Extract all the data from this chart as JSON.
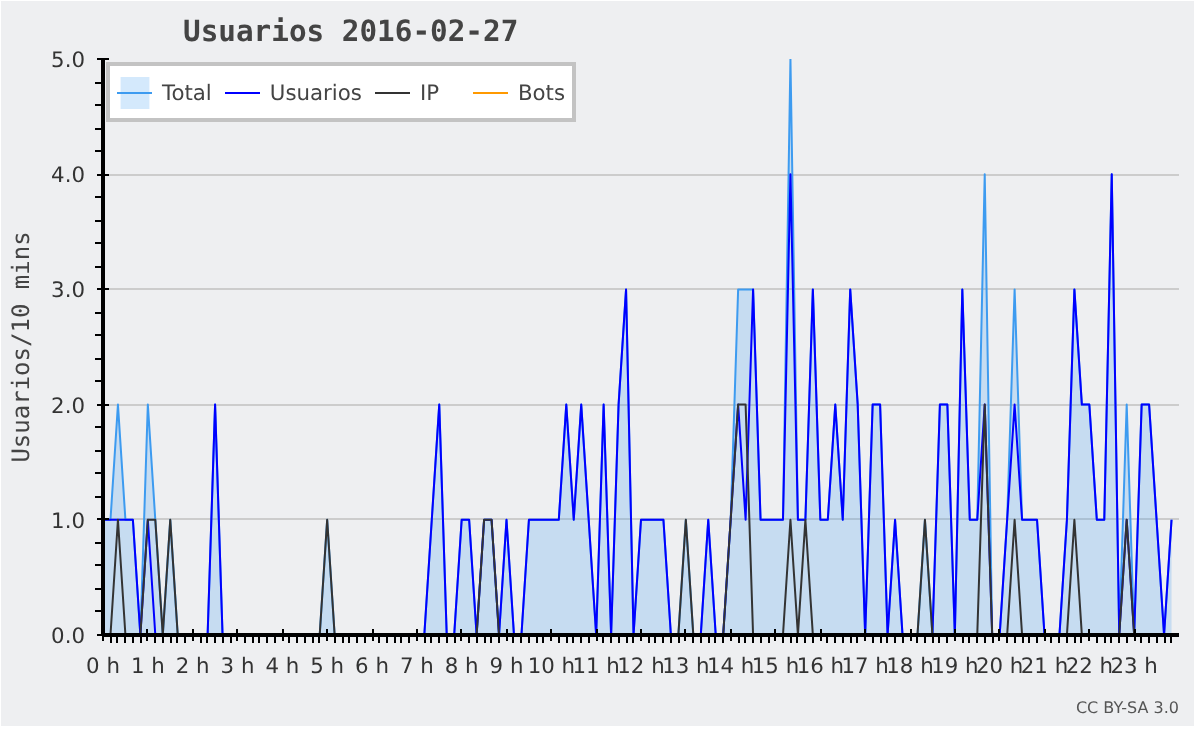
{
  "chart_data": {
    "type": "line",
    "title": "Usuarios  2016-02-27",
    "ylabel": "Usuarios/10 mins",
    "x": [
      0,
      0.1667,
      0.3333,
      0.5,
      0.6667,
      0.8333,
      1,
      1.1667,
      1.3333,
      1.5,
      1.6667,
      1.8333,
      2,
      2.1667,
      2.3333,
      2.5,
      2.6667,
      2.8333,
      3,
      3.1667,
      3.3333,
      3.5,
      3.6667,
      3.8333,
      4,
      4.1667,
      4.3333,
      4.5,
      4.6667,
      4.8333,
      5,
      5.1667,
      5.3333,
      5.5,
      5.6667,
      5.8333,
      6,
      6.1667,
      6.3333,
      6.5,
      6.6667,
      6.8333,
      7,
      7.1667,
      7.3333,
      7.5,
      7.6667,
      7.8333,
      8,
      8.1667,
      8.3333,
      8.5,
      8.6667,
      8.8333,
      9,
      9.1667,
      9.3333,
      9.5,
      9.6667,
      9.8333,
      10,
      10.1667,
      10.3333,
      10.5,
      10.6667,
      10.8333,
      11,
      11.1667,
      11.3333,
      11.5,
      11.6667,
      11.8333,
      12,
      12.1667,
      12.3333,
      12.5,
      12.6667,
      12.8333,
      13,
      13.1667,
      13.3333,
      13.5,
      13.6667,
      13.8333,
      14,
      14.1667,
      14.3333,
      14.5,
      14.6667,
      14.8333,
      15,
      15.1667,
      15.3333,
      15.5,
      15.6667,
      15.8333,
      16,
      16.1667,
      16.3333,
      16.5,
      16.6667,
      16.8333,
      17,
      17.1667,
      17.3333,
      17.5,
      17.6667,
      17.8333,
      18,
      18.1667,
      18.3333,
      18.5,
      18.6667,
      18.8333,
      19,
      19.1667,
      19.3333,
      19.5,
      19.6667,
      19.8333,
      20,
      20.1667,
      20.3333,
      20.5,
      20.6667,
      20.8333,
      21,
      21.1667,
      21.3333,
      21.5,
      21.6667,
      21.8333,
      22,
      22.1667,
      22.3333,
      22.5,
      22.6667,
      22.8333,
      23,
      23.1667,
      23.3333,
      23.5,
      23.6667,
      23.8333
    ],
    "series": [
      {
        "name": "Total",
        "type": "area",
        "color": "#3d9bf0",
        "values": [
          1,
          1,
          2,
          1,
          1,
          0,
          2,
          1,
          0,
          1,
          0,
          0,
          0,
          0,
          0,
          2,
          0,
          0,
          0,
          0,
          0,
          0,
          0,
          0,
          0,
          0,
          0,
          0,
          0,
          0,
          1,
          0,
          0,
          0,
          0,
          0,
          0,
          0,
          0,
          0,
          0,
          0,
          0,
          0,
          1,
          2,
          0,
          0,
          1,
          1,
          0,
          1,
          1,
          0,
          1,
          0,
          0,
          1,
          1,
          1,
          1,
          1,
          2,
          1,
          2,
          1,
          0,
          2,
          0,
          2,
          3,
          0,
          1,
          1,
          1,
          1,
          0,
          0,
          1,
          0,
          0,
          1,
          0,
          0,
          1,
          3,
          3,
          3,
          1,
          1,
          1,
          1,
          5,
          1,
          1,
          3,
          1,
          1,
          2,
          1,
          3,
          2,
          0,
          2,
          2,
          0,
          1,
          0,
          0,
          0,
          1,
          0,
          2,
          2,
          0,
          3,
          1,
          1,
          4,
          0,
          0,
          1,
          3,
          1,
          1,
          1,
          0,
          0,
          0,
          1,
          3,
          2,
          2,
          1,
          1,
          4,
          0,
          2,
          0,
          2,
          2,
          1,
          0,
          1
        ]
      },
      {
        "name": "Usuarios",
        "color": "#0000ff",
        "values": [
          1,
          1,
          1,
          1,
          1,
          0,
          1,
          0,
          0,
          null,
          0,
          0,
          0,
          0,
          0,
          2,
          0,
          0,
          0,
          0,
          0,
          0,
          0,
          0,
          0,
          0,
          0,
          0,
          0,
          0,
          null,
          0,
          0,
          0,
          0,
          0,
          0,
          0,
          0,
          0,
          0,
          0,
          0,
          0,
          1,
          2,
          0,
          0,
          1,
          1,
          0,
          1,
          1,
          0,
          1,
          0,
          0,
          1,
          1,
          1,
          1,
          1,
          2,
          1,
          2,
          1,
          0,
          2,
          0,
          2,
          3,
          0,
          1,
          1,
          1,
          1,
          0,
          0,
          null,
          0,
          0,
          1,
          0,
          0,
          1,
          2,
          1,
          3,
          1,
          1,
          1,
          1,
          4,
          1,
          1,
          3,
          1,
          1,
          2,
          1,
          3,
          2,
          0,
          2,
          2,
          0,
          1,
          0,
          0,
          0,
          0,
          0,
          2,
          2,
          0,
          3,
          1,
          1,
          2,
          0,
          0,
          1,
          2,
          1,
          1,
          1,
          0,
          0,
          0,
          1,
          3,
          2,
          2,
          1,
          1,
          4,
          0,
          1,
          0,
          2,
          2,
          1,
          0,
          1
        ]
      },
      {
        "name": "IP",
        "color": "#333333",
        "values": [
          0,
          0,
          1,
          0,
          0,
          0,
          1,
          1,
          0,
          1,
          0,
          0,
          0,
          0,
          0,
          0,
          0,
          0,
          0,
          0,
          0,
          0,
          0,
          0,
          0,
          0,
          0,
          0,
          0,
          0,
          1,
          0,
          0,
          0,
          0,
          0,
          0,
          0,
          0,
          0,
          0,
          0,
          0,
          0,
          0,
          0,
          0,
          0,
          0,
          0,
          0,
          1,
          1,
          0,
          0,
          0,
          0,
          0,
          0,
          0,
          0,
          0,
          0,
          0,
          0,
          0,
          0,
          0,
          0,
          0,
          0,
          0,
          0,
          0,
          0,
          0,
          0,
          0,
          1,
          0,
          0,
          0,
          0,
          0,
          1,
          2,
          2,
          0,
          0,
          0,
          0,
          0,
          1,
          0,
          1,
          0,
          0,
          0,
          0,
          0,
          0,
          0,
          0,
          0,
          0,
          0,
          0,
          0,
          0,
          0,
          1,
          0,
          0,
          0,
          0,
          0,
          0,
          0,
          2,
          0,
          0,
          0,
          1,
          0,
          0,
          0,
          0,
          0,
          0,
          0,
          1,
          0,
          0,
          0,
          0,
          0,
          0,
          1,
          0,
          0,
          0,
          0,
          0,
          0
        ]
      },
      {
        "name": "Bots",
        "color": "#ff9900",
        "values": [
          null,
          null,
          null,
          null,
          null,
          null,
          null,
          null,
          null,
          null,
          null,
          null,
          null,
          null,
          null,
          null,
          null,
          null,
          null,
          null,
          null,
          null,
          null,
          null,
          null,
          null,
          null,
          null,
          null,
          null,
          null,
          null,
          null,
          null,
          null,
          null,
          null,
          null,
          null,
          null,
          null,
          null,
          null,
          null,
          null,
          null,
          null,
          null,
          null,
          null,
          null,
          null,
          null,
          null,
          null,
          null,
          null,
          null,
          null,
          null,
          null,
          null,
          null,
          null,
          null,
          null,
          null,
          null,
          null,
          null,
          null,
          null,
          null,
          null,
          null,
          null,
          null,
          null,
          null,
          null,
          null,
          null,
          null,
          null,
          null,
          null,
          null,
          null,
          null,
          null,
          null,
          null,
          null,
          null,
          null,
          null,
          null,
          null,
          null,
          null,
          null,
          null,
          null,
          null,
          null,
          null,
          null,
          null,
          null,
          null,
          null,
          null,
          null,
          null,
          null,
          null,
          null,
          null,
          null,
          null,
          null,
          null,
          null,
          null,
          null,
          null,
          null,
          null,
          null,
          null,
          null,
          null,
          null,
          null,
          null,
          null,
          null,
          null,
          null,
          null,
          null,
          null,
          null,
          null
        ]
      }
    ],
    "xlim": [
      0,
      24
    ],
    "xticks": [
      {
        "value": 0,
        "label": "0 h"
      },
      {
        "value": 1,
        "label": "1 h"
      },
      {
        "value": 2,
        "label": "2 h"
      },
      {
        "value": 3,
        "label": "3 h"
      },
      {
        "value": 4,
        "label": "4 h"
      },
      {
        "value": 5,
        "label": "5 h"
      },
      {
        "value": 6,
        "label": "6 h"
      },
      {
        "value": 7,
        "label": "7 h"
      },
      {
        "value": 8,
        "label": "8 h"
      },
      {
        "value": 9,
        "label": "9 h"
      },
      {
        "value": 10,
        "label": "10 h"
      },
      {
        "value": 11,
        "label": "11 h"
      },
      {
        "value": 12,
        "label": "12 h"
      },
      {
        "value": 13,
        "label": "13 h"
      },
      {
        "value": 14,
        "label": "14 h"
      },
      {
        "value": 15,
        "label": "15 h"
      },
      {
        "value": 16,
        "label": "16 h"
      },
      {
        "value": 17,
        "label": "17 h"
      },
      {
        "value": 18,
        "label": "18 h"
      },
      {
        "value": 19,
        "label": "19 h"
      },
      {
        "value": 20,
        "label": "20 h"
      },
      {
        "value": 21,
        "label": "21 h"
      },
      {
        "value": 22,
        "label": "22 h"
      },
      {
        "value": 23,
        "label": "23 h"
      }
    ],
    "ylim": [
      0,
      5
    ],
    "yticks": [
      {
        "value": 0,
        "label": "0.0"
      },
      {
        "value": 1,
        "label": "1.0"
      },
      {
        "value": 2,
        "label": "2.0"
      },
      {
        "value": 3,
        "label": "3.0"
      },
      {
        "value": 4,
        "label": "4.0"
      },
      {
        "value": 5,
        "label": "5.0"
      }
    ],
    "grid": "y",
    "legend": "top left",
    "marker": "none",
    "line_style": "solid",
    "annotations": [
      "CC BY-SA 3.0"
    ]
  }
}
